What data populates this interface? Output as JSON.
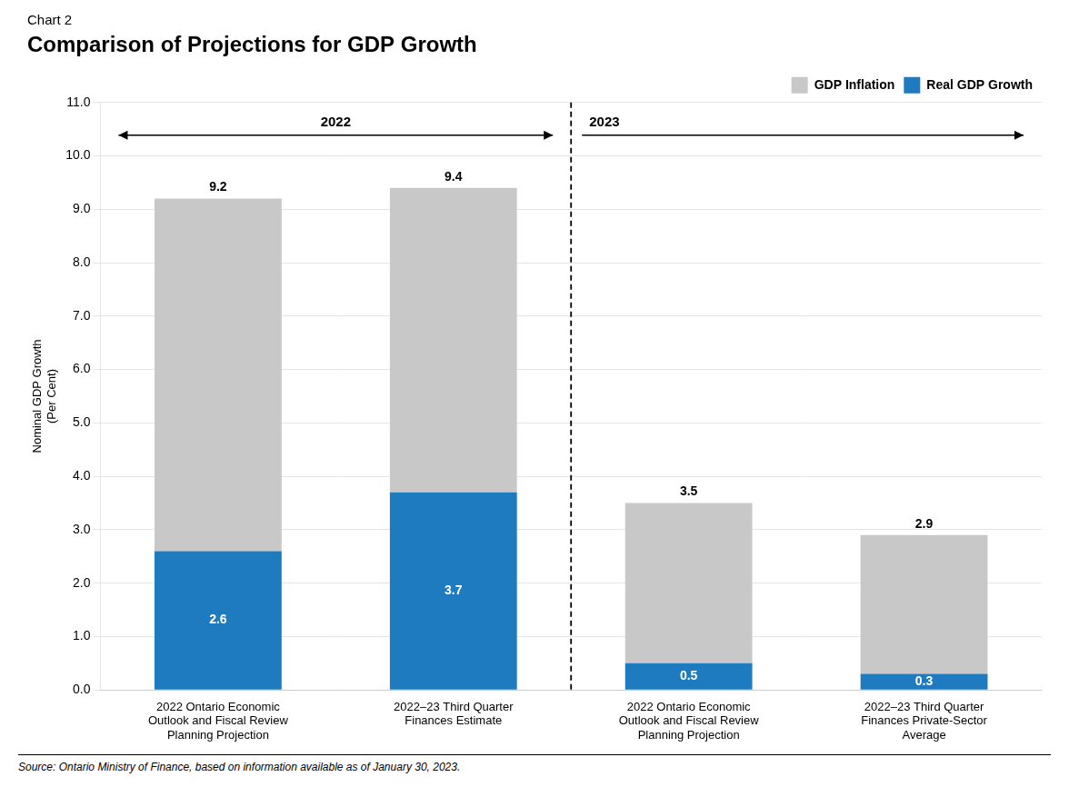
{
  "chart_data": {
    "type": "bar",
    "stacked": true,
    "subtitle": "Chart 2",
    "title": "Comparison of Projections for GDP Growth",
    "ylabel": [
      "Nominal GDP Growth",
      "(Per Cent)"
    ],
    "categories": [
      "2022 Ontario Economic\nOutlook and Fiscal Review\nPlanning Projection",
      "2022–23 Third Quarter\nFinances Estimate",
      "2022 Ontario Economic\nOutlook and Fiscal Review\nPlanning Projection",
      "2022–23 Third Quarter\nFinances Private-Sector\nAverage"
    ],
    "series": [
      {
        "name": "Real GDP Growth",
        "color": "#1f7bbf",
        "values": [
          2.6,
          3.7,
          0.5,
          0.3
        ],
        "data_labels": true
      },
      {
        "name": "GDP Inflation",
        "color": "#c8c8c8",
        "values": [
          6.6,
          5.7,
          3.0,
          2.6
        ]
      }
    ],
    "totals": [
      9.2,
      9.4,
      3.5,
      2.9
    ],
    "ylim": [
      0.0,
      11.0
    ],
    "yticks": [
      {
        "value": 0,
        "label": "0.0"
      },
      {
        "value": 1,
        "label": "1.0"
      },
      {
        "value": 2,
        "label": "2.0"
      },
      {
        "value": 3,
        "label": "3.0"
      },
      {
        "value": 4,
        "label": "4.0"
      },
      {
        "value": 5,
        "label": "5.0"
      },
      {
        "value": 6,
        "label": "6.0"
      },
      {
        "value": 7,
        "label": "7.0"
      },
      {
        "value": 8,
        "label": "8.0"
      },
      {
        "value": 9,
        "label": "9.0"
      },
      {
        "value": 10,
        "label": "10.0"
      },
      {
        "value": 11,
        "label": "11.0"
      }
    ],
    "grid": true,
    "legend": "upper right",
    "annotations": [
      {
        "text": "2022"
      },
      {
        "text": "2023"
      }
    ],
    "source": "Source: Ontario Ministry of Finance, based on information available as of January 30, 2023."
  }
}
